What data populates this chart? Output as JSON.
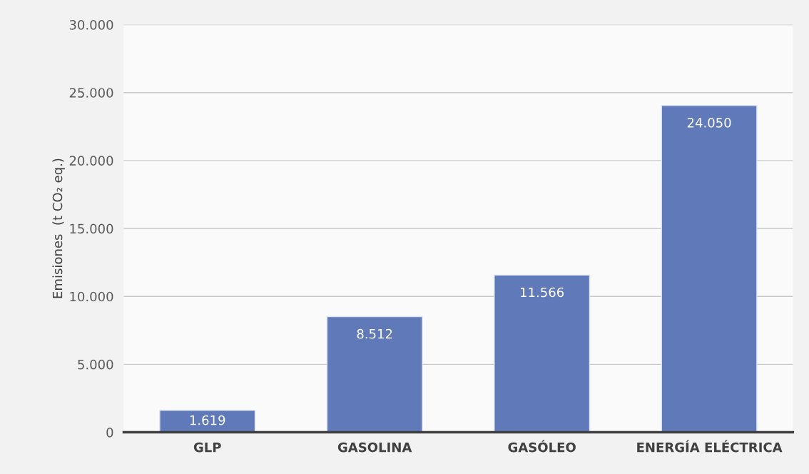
{
  "chart_data": {
    "type": "bar",
    "ylabel": "Emisiones  (t CO₂ eq.)",
    "categories": [
      "GLP",
      "GASOLINA",
      "GASÓLEO",
      "ENERGÍA ELÉCTRICA"
    ],
    "values": [
      1619,
      8512,
      11566,
      24050
    ],
    "value_labels": [
      "1.619",
      "8.512",
      "11.566",
      "24.050"
    ],
    "color": "#6079b9",
    "ylim": [
      0,
      30000
    ],
    "yticks": [
      0,
      {
        "value": 5000,
        "label": "5.000"
      },
      {
        "value": 10000,
        "label": "10.000"
      },
      {
        "value": 15000,
        "label": "15.000"
      },
      {
        "value": 20000,
        "label": "20.000"
      },
      {
        "value": 25000,
        "label": "25.000"
      },
      {
        "value": 30000,
        "label": "30.000"
      }
    ],
    "grid": "y"
  }
}
